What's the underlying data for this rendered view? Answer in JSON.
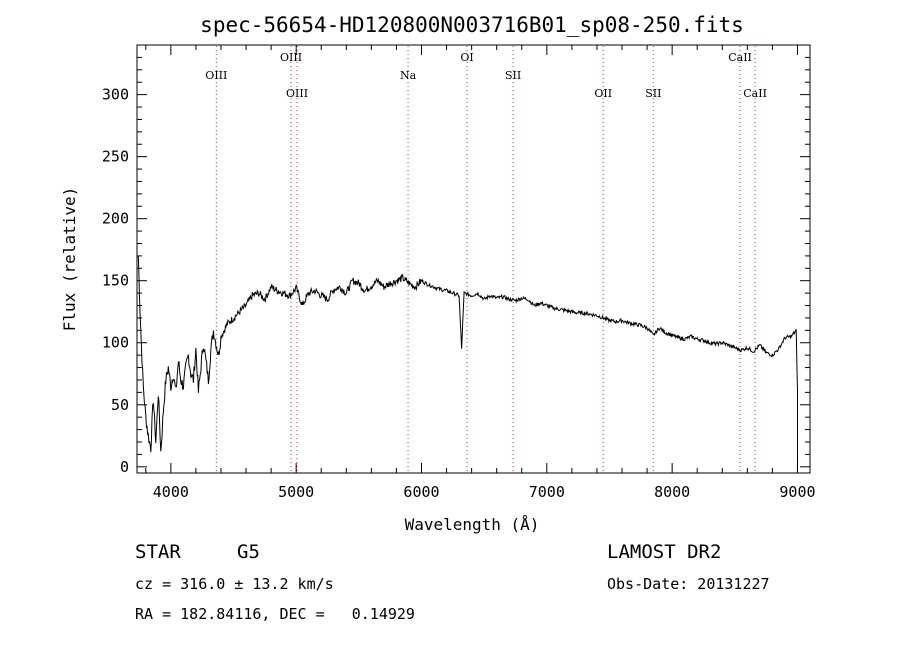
{
  "chart_data": {
    "type": "line",
    "title": "spec-56654-HD120800N003716B01_sp08-250.fits",
    "xlabel": "Wavelength (Å)",
    "ylabel": "Flux (relative)",
    "xlim": [
      3730,
      9100
    ],
    "ylim": [
      -5,
      340
    ],
    "xticks": [
      4000,
      5000,
      6000,
      7000,
      8000,
      9000
    ],
    "yticks": [
      0,
      50,
      100,
      150,
      200,
      250,
      300
    ],
    "grid": false,
    "series": [
      {
        "x": [
          3740,
          3760,
          3780,
          3800,
          3820,
          3840,
          3860,
          3880,
          3900,
          3920,
          3940,
          3960,
          3980,
          4000,
          4020,
          4040,
          4060,
          4080,
          4100,
          4120,
          4140,
          4160,
          4180,
          4200,
          4220,
          4240,
          4260,
          4280,
          4300,
          4320,
          4340,
          4360,
          4380,
          4400,
          4450,
          4500,
          4550,
          4600,
          4650,
          4700,
          4750,
          4800,
          4850,
          4900,
          4950,
          5000,
          5050,
          5100,
          5150,
          5200,
          5250,
          5300,
          5350,
          5400,
          5450,
          5500,
          5550,
          5600,
          5650,
          5700,
          5750,
          5800,
          5850,
          5900,
          5950,
          6000,
          6050,
          6100,
          6150,
          6200,
          6250,
          6300,
          6320,
          6340,
          6400,
          6450,
          6500,
          6550,
          6600,
          6650,
          6700,
          6750,
          6800,
          6850,
          6900,
          6950,
          7000,
          7050,
          7100,
          7150,
          7200,
          7250,
          7300,
          7350,
          7400,
          7450,
          7500,
          7550,
          7600,
          7650,
          7700,
          7750,
          7800,
          7850,
          7900,
          7950,
          8000,
          8050,
          8100,
          8150,
          8200,
          8250,
          8300,
          8350,
          8400,
          8450,
          8500,
          8550,
          8600,
          8650,
          8700,
          8750,
          8800,
          8850,
          8900,
          8950,
          8990,
          9000
        ],
        "y": [
          170,
          110,
          65,
          40,
          25,
          15,
          55,
          20,
          60,
          12,
          45,
          70,
          80,
          65,
          75,
          60,
          85,
          70,
          65,
          80,
          90,
          75,
          70,
          95,
          60,
          80,
          100,
          85,
          70,
          95,
          110,
          100,
          90,
          105,
          115,
          120,
          125,
          130,
          138,
          140,
          135,
          145,
          142,
          140,
          138,
          144,
          130,
          140,
          142,
          138,
          135,
          143,
          145,
          140,
          150,
          148,
          142,
          146,
          150,
          145,
          148,
          150,
          152,
          148,
          145,
          150,
          147,
          145,
          143,
          142,
          140,
          138,
          95,
          140,
          138,
          140,
          135,
          138,
          136,
          137,
          135,
          134,
          136,
          135,
          130,
          132,
          130,
          128,
          127,
          126,
          125,
          124,
          124,
          123,
          122,
          120,
          118,
          117,
          118,
          116,
          115,
          114,
          112,
          106,
          112,
          108,
          106,
          104,
          103,
          105,
          103,
          102,
          100,
          99,
          100,
          98,
          96,
          94,
          96,
          93,
          98,
          92,
          90,
          95,
          104,
          105,
          110,
          60
        ]
      }
    ],
    "lines": [
      {
        "label": "OIII",
        "x": 4363,
        "pos": "high"
      },
      {
        "label": "OIII",
        "x": 4959,
        "pos": "top"
      },
      {
        "label": "OIII",
        "x": 5007,
        "pos": "low"
      },
      {
        "label": "Na",
        "x": 5893,
        "pos": "high"
      },
      {
        "label": "OI",
        "x": 6364,
        "pos": "top"
      },
      {
        "label": "SII",
        "x": 6731,
        "pos": "high"
      },
      {
        "label": "OII",
        "x": 7450,
        "pos": "low"
      },
      {
        "label": "SII",
        "x": 7850,
        "pos": "low"
      },
      {
        "label": "CaII",
        "x": 8542,
        "pos": "top"
      },
      {
        "label": "CaII",
        "x": 8662,
        "pos": "low"
      }
    ]
  },
  "info": {
    "class_label": "STAR",
    "subclass_label": "G5",
    "survey": "LAMOST DR2",
    "cz": "cz = 316.0 ± 13.2 km/s",
    "obs_date": "Obs-Date: 20131227",
    "coords": "RA = 182.84116, DEC =   0.14929"
  }
}
